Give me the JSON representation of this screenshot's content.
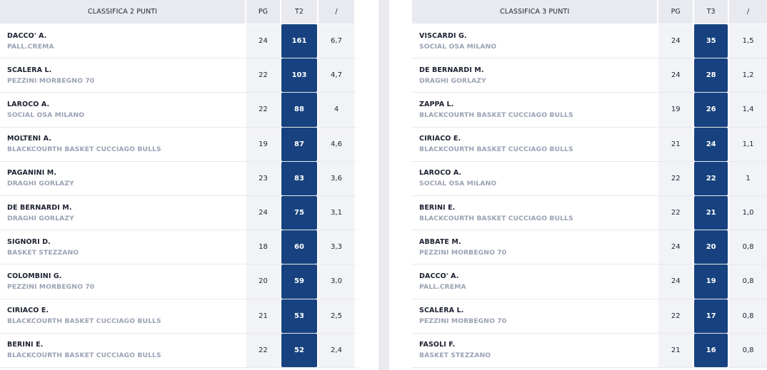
{
  "colors": {
    "badge": "#17427f",
    "header_bg": "#e8eaf0",
    "team_text": "#9aa2b4"
  },
  "left": {
    "headers": {
      "name": "CLASSIFICA 2 PUNTI",
      "pg": "PG",
      "t": "T2",
      "avg": "/"
    },
    "rows": [
      {
        "name": "DACCO' A.",
        "team": "PALL.CREMA",
        "pg": "24",
        "t": "161",
        "avg": "6,7"
      },
      {
        "name": "SCALERA L.",
        "team": "PEZZINI MORBEGNO 70",
        "pg": "22",
        "t": "103",
        "avg": "4,7"
      },
      {
        "name": "LAROCO A.",
        "team": "SOCIAL OSA MILANO",
        "pg": "22",
        "t": "88",
        "avg": "4"
      },
      {
        "name": "MOLTENI A.",
        "team": "BLACKCOURTH BASKET CUCCIAGO BULLS",
        "pg": "19",
        "t": "87",
        "avg": "4,6"
      },
      {
        "name": "PAGANINI M.",
        "team": "DRAGHI GORLAZY",
        "pg": "23",
        "t": "83",
        "avg": "3,6"
      },
      {
        "name": "DE BERNARDI M.",
        "team": "DRAGHI GORLAZY",
        "pg": "24",
        "t": "75",
        "avg": "3,1"
      },
      {
        "name": "SIGNORI D.",
        "team": "BASKET STEZZANO",
        "pg": "18",
        "t": "60",
        "avg": "3,3"
      },
      {
        "name": "COLOMBINI G.",
        "team": "PEZZINI MORBEGNO 70",
        "pg": "20",
        "t": "59",
        "avg": "3,0"
      },
      {
        "name": "CIRIACO E.",
        "team": "BLACKCOURTH BASKET CUCCIAGO BULLS",
        "pg": "21",
        "t": "53",
        "avg": "2,5"
      },
      {
        "name": "BERINI E.",
        "team": "BLACKCOURTH BASKET CUCCIAGO BULLS",
        "pg": "22",
        "t": "52",
        "avg": "2,4"
      }
    ]
  },
  "right": {
    "headers": {
      "name": "CLASSIFICA 3 PUNTI",
      "pg": "PG",
      "t": "T3",
      "avg": "/"
    },
    "rows": [
      {
        "name": "VISCARDI G.",
        "team": "SOCIAL OSA MILANO",
        "pg": "24",
        "t": "35",
        "avg": "1,5"
      },
      {
        "name": "DE BERNARDI M.",
        "team": "DRAGHI GORLAZY",
        "pg": "24",
        "t": "28",
        "avg": "1,2"
      },
      {
        "name": "ZAPPA L.",
        "team": "BLACKCOURTH BASKET CUCCIAGO BULLS",
        "pg": "19",
        "t": "26",
        "avg": "1,4"
      },
      {
        "name": "CIRIACO E.",
        "team": "BLACKCOURTH BASKET CUCCIAGO BULLS",
        "pg": "21",
        "t": "24",
        "avg": "1,1"
      },
      {
        "name": "LAROCO A.",
        "team": "SOCIAL OSA MILANO",
        "pg": "22",
        "t": "22",
        "avg": "1"
      },
      {
        "name": "BERINI E.",
        "team": "BLACKCOURTH BASKET CUCCIAGO BULLS",
        "pg": "22",
        "t": "21",
        "avg": "1,0"
      },
      {
        "name": "ABBATE M.",
        "team": "PEZZINI MORBEGNO 70",
        "pg": "24",
        "t": "20",
        "avg": "0,8"
      },
      {
        "name": "DACCO' A.",
        "team": "PALL.CREMA",
        "pg": "24",
        "t": "19",
        "avg": "0,8"
      },
      {
        "name": "SCALERA L.",
        "team": "PEZZINI MORBEGNO 70",
        "pg": "22",
        "t": "17",
        "avg": "0,8"
      },
      {
        "name": "FASOLI F.",
        "team": "BASKET STEZZANO",
        "pg": "21",
        "t": "16",
        "avg": "0,8"
      }
    ]
  }
}
